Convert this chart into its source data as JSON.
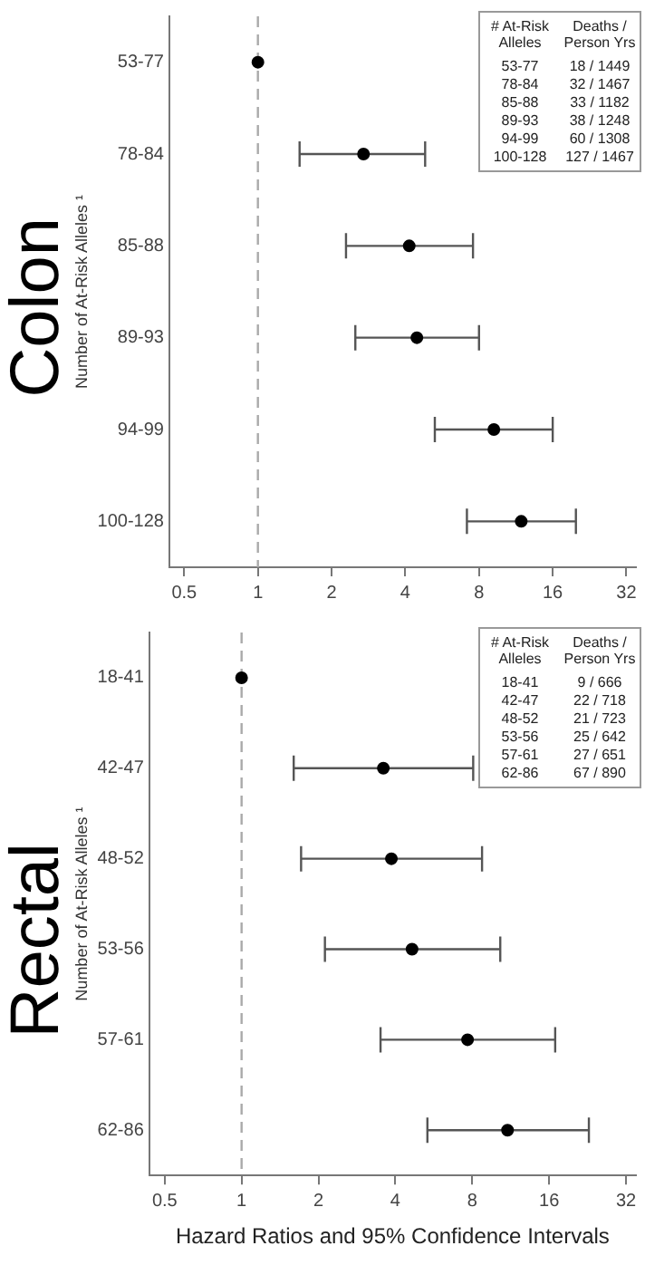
{
  "chart_data": [
    {
      "type": "scatter",
      "orientation": "horizontal",
      "title": "Colon",
      "ylabel": "Number of At-Risk Alleles ¹",
      "categories": [
        "53-77",
        "78-84",
        "85-88",
        "89-93",
        "94-99",
        "100-128"
      ],
      "values": [
        1,
        2.7,
        4.15,
        4.46,
        9.2,
        11.9
      ],
      "errors": [
        null,
        [
          1.48,
          4.82
        ],
        [
          2.29,
          7.56
        ],
        [
          2.5,
          8.0
        ],
        [
          5.28,
          16
        ],
        [
          7.14,
          19.9
        ]
      ],
      "color": "#000000",
      "marker": "circle",
      "log": "x",
      "xlim": [
        0.435,
        35
      ],
      "xticks": [
        0.5,
        1,
        2,
        4,
        8,
        16,
        32
      ],
      "grid": false,
      "legend": false,
      "ref_lines": [
        {
          "axis": "x",
          "value": 1,
          "color": "#aaaaaa",
          "line_style": "dashed"
        }
      ],
      "annotations": [
        "# At-Risk Alleles",
        "Deaths / Person Yrs",
        "53-77",
        "18 / 1449",
        "78-84",
        "32 / 1467",
        "85-88",
        "33 / 1182",
        "89-93",
        "38 / 1248",
        "94-99",
        "60 / 1308",
        "100-128",
        "127 / 1467"
      ]
    },
    {
      "type": "scatter",
      "orientation": "horizontal",
      "title": "Rectal",
      "ylabel": "Number of At-Risk Alleles ¹",
      "xlabel": "Hazard Ratios and 95% Confidence Intervals",
      "categories": [
        "18-41",
        "42-47",
        "48-52",
        "53-56",
        "57-61",
        "62-86"
      ],
      "values": [
        1,
        3.59,
        3.86,
        4.65,
        7.67,
        11.0
      ],
      "errors": [
        null,
        [
          1.6,
          8.07
        ],
        [
          1.71,
          8.74
        ],
        [
          2.12,
          10.3
        ],
        [
          3.5,
          16.9
        ],
        [
          5.34,
          22.9
        ]
      ],
      "color": "#000000",
      "marker": "circle",
      "log": "x",
      "xlim": [
        0.435,
        35
      ],
      "xticks": [
        0.5,
        1,
        2,
        4,
        8,
        16,
        32
      ],
      "grid": false,
      "legend": false,
      "ref_lines": [
        {
          "axis": "x",
          "value": 1,
          "color": "#aaaaaa",
          "line_style": "dashed"
        }
      ],
      "annotations": [
        "# At-Risk Alleles",
        "Deaths / Person Yrs",
        "18-41",
        "9 / 666",
        "42-47",
        "22 / 718",
        "48-52",
        "21 / 723",
        "53-56",
        "25 / 642",
        "57-61",
        "27 / 651",
        "62-86",
        "67 / 890"
      ]
    }
  ]
}
